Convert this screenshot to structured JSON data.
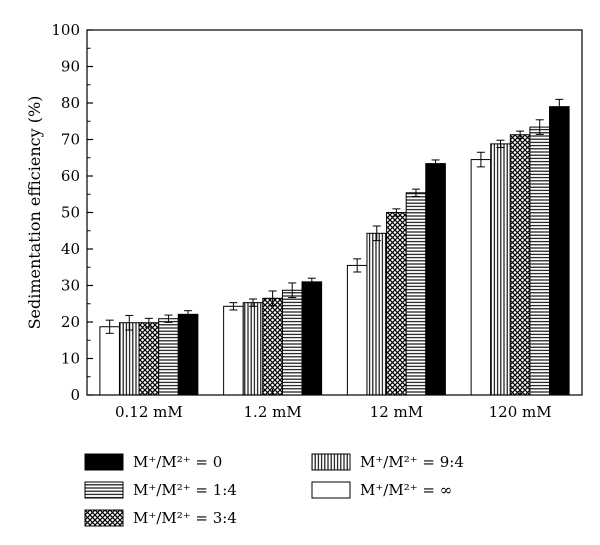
{
  "chart_data": {
    "type": "bar",
    "title": "",
    "xlabel": "",
    "ylabel": "Sedimentation efficiency (%)",
    "ylim": [
      0,
      100
    ],
    "yticks": [
      "0",
      "10",
      "20",
      "30",
      "40",
      "50",
      "60",
      "70",
      "80",
      "90",
      "100"
    ],
    "categories": [
      "0.12 mM",
      "1.2 mM",
      "12 mM",
      "120 mM"
    ],
    "error_bars": true,
    "legend_position": "bottom",
    "series": [
      {
        "name": "M⁺/M²⁺ = ∞",
        "pattern": "white",
        "values": [
          18.7,
          24.3,
          35.5,
          64.5
        ],
        "errors": [
          1.8,
          1.0,
          1.8,
          2.0
        ]
      },
      {
        "name": "M⁺/M²⁺ = 9:4",
        "pattern": "vertical-lines",
        "values": [
          19.8,
          25.3,
          44.3,
          68.8
        ],
        "errors": [
          2.0,
          1.0,
          2.0,
          1.0
        ]
      },
      {
        "name": "M⁺/M²⁺ = 3:4",
        "pattern": "crosshatch",
        "values": [
          19.8,
          26.5,
          50.0,
          71.3
        ],
        "errors": [
          1.2,
          2.0,
          1.0,
          1.0
        ]
      },
      {
        "name": "M⁺/M²⁺ = 1:4",
        "pattern": "horizontal-lines",
        "values": [
          20.9,
          28.7,
          55.4,
          73.4
        ],
        "errors": [
          1.0,
          2.0,
          1.0,
          2.0
        ]
      },
      {
        "name": "M⁺/M²⁺ = 0",
        "pattern": "black",
        "values": [
          22.1,
          31.0,
          63.4,
          79.0
        ],
        "errors": [
          1.0,
          1.0,
          1.0,
          2.0
        ]
      }
    ],
    "legend": [
      {
        "name": "M⁺/M²⁺ = 0",
        "pattern": "black"
      },
      {
        "name": "M⁺/M²⁺ = 9:4",
        "pattern": "vertical-lines"
      },
      {
        "name": "M⁺/M²⁺ = 1:4",
        "pattern": "horizontal-lines"
      },
      {
        "name": "M⁺/M²⁺ = ∞",
        "pattern": "white"
      },
      {
        "name": "M⁺/M²⁺ = 3:4",
        "pattern": "crosshatch"
      }
    ]
  }
}
